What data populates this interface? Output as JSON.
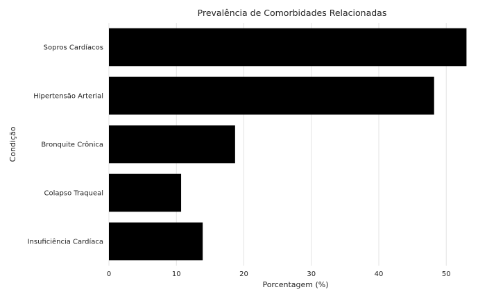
{
  "chart_data": {
    "type": "bar",
    "orientation": "horizontal",
    "title": "Prevalência de Comorbidades Relacionadas",
    "xlabel": "Porcentagem (%)",
    "ylabel": "Condição",
    "categories": [
      "Sopros Cardíacos",
      "Hipertensão Arterial",
      "Bronquite Crônica",
      "Colapso Traqueal",
      "Insuficiência Cardíaca"
    ],
    "values": [
      53,
      48.2,
      18.7,
      10.7,
      13.9
    ],
    "xlim": [
      0,
      54.5
    ],
    "xticks": [
      0,
      10,
      20,
      30,
      40,
      50
    ],
    "grid": "vertical",
    "bar_color": "#000000",
    "grid_color": "#e3e3e3"
  }
}
